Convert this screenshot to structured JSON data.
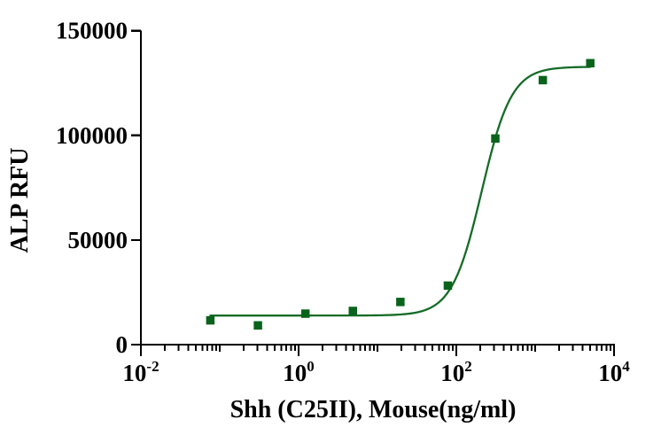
{
  "figure": {
    "background": "#ffffff"
  },
  "chart_data": {
    "type": "scatter",
    "title": "",
    "xlabel": "Shh (C25II), Mouse(ng/ml)",
    "ylabel": "ALP RFU",
    "grid": false,
    "legend": false,
    "x_axis": {
      "scale": "log10",
      "lim_exponents": [
        -2,
        4
      ],
      "labeled_tick_exponents": [
        -2,
        0,
        2,
        4
      ],
      "labeled_tick_base": "10",
      "minor_ticks": "log positions 2-9 each decade"
    },
    "y_axis": {
      "scale": "linear",
      "lim": [
        0,
        150000
      ],
      "ticks": [
        0,
        50000,
        100000,
        150000
      ],
      "tick_labels": [
        "0",
        "50000",
        "100000",
        "150000"
      ]
    },
    "series": [
      {
        "marker": "filled-square",
        "color": "#0a631b",
        "x": [
          0.076,
          0.305,
          1.22,
          4.88,
          19.53,
          78.13,
          312.5,
          1250,
          5000
        ],
        "y": [
          11600,
          9200,
          14800,
          16100,
          20400,
          28200,
          98500,
          126400,
          134500
        ]
      }
    ],
    "fit_curve": {
      "model": "4PL sigmoid",
      "bottom": 13900,
      "top": 132800,
      "ec50": 210,
      "hill": 2.3,
      "x_range": [
        0.076,
        5000
      ],
      "color": "#146c26"
    }
  },
  "colors": {
    "axis": "#000000",
    "text": "#000000"
  }
}
